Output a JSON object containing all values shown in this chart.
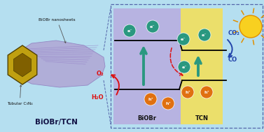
{
  "bg_color": "#b5dff0",
  "fig_width": 3.77,
  "fig_height": 1.89,
  "dpi": 100,
  "biobr_color": "#b8b0e0",
  "tcn_color": "#f0e060",
  "electron_color": "#2a9880",
  "hole_color": "#e07010",
  "arrow_up_color": "#2a9880",
  "o2_h2o_color": "#dd1111",
  "co2_co_color": "#2244aa",
  "label_biobr": "BiOBr",
  "label_tcn": "TCN",
  "label_biobr_tcn": "BiOBr/TCN",
  "label_nanosheets": "BiOBr nanosheets",
  "label_tubular": "Tubular C₃N₄",
  "label_co2": "CO₂",
  "label_co": "CO",
  "label_o2": "O₂",
  "label_h2o": "H₂O",
  "label_e": "e⁻",
  "label_h": "h⁺",
  "tube_color": "#b0a8d5",
  "tube_edge": "#9080c0",
  "hex_outer": "#c0a010",
  "hex_inner": "#806000",
  "hex_dark": "#504000",
  "label_color": "#111144",
  "dash_color": "#5566aa"
}
